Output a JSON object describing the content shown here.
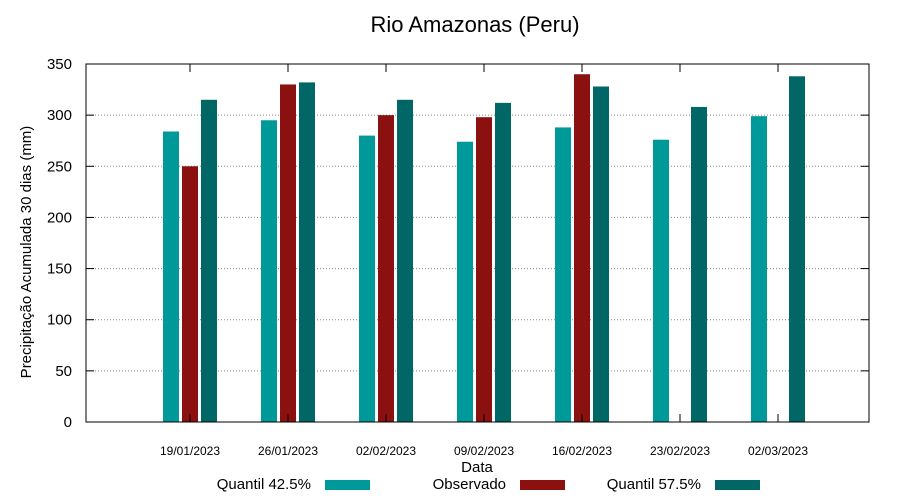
{
  "chart_data": {
    "type": "bar",
    "title": "Rio Amazonas (Peru)",
    "xlabel": "Data",
    "ylabel": "Precipitação Acumulada 30 dias (mm)",
    "ylim": [
      0,
      350
    ],
    "yticks": [
      "0",
      "50",
      "100",
      "150",
      "200",
      "250",
      "300",
      "350"
    ],
    "grid": true,
    "legend_position": "bottom",
    "categories": [
      "19/01/2023",
      "26/01/2023",
      "02/02/2023",
      "09/02/2023",
      "16/02/2023",
      "23/02/2023",
      "02/03/2023"
    ],
    "series": [
      {
        "name": "Quantil 42.5%",
        "color": "#009999",
        "values": [
          284,
          295,
          280,
          274,
          288,
          276,
          299
        ]
      },
      {
        "name": "Observado",
        "color": "#8b1111",
        "values": [
          250,
          330,
          300,
          298,
          340,
          null,
          null
        ]
      },
      {
        "name": "Quantil 57.5%",
        "color": "#006666",
        "values": [
          315,
          332,
          315,
          312,
          328,
          308,
          338
        ]
      }
    ]
  }
}
